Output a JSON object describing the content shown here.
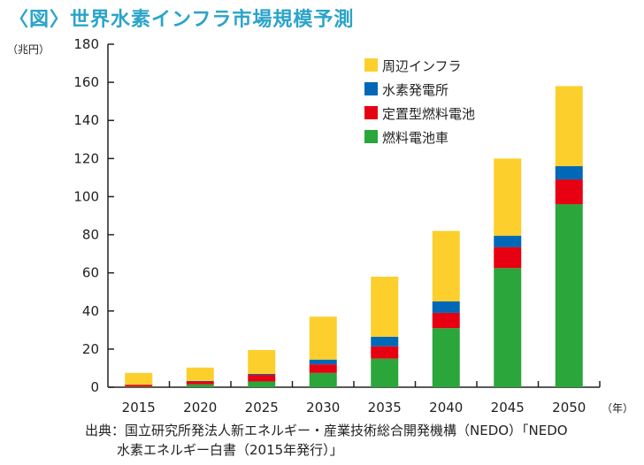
{
  "title": "〈図〉世界水素インフラ市場規模予測",
  "source": {
    "line1": "出典：国立研究所発法人新エネルギー・産業技術総合開発機構（NEDO）「NEDO",
    "line2": "水素エネルギー白書（2015年発行）」"
  },
  "chart_data": {
    "type": "bar",
    "stacked": true,
    "title": "〈図〉世界水素インフラ市場規模予測",
    "ylabel_unit": "（兆円）",
    "xlabel_unit": "（年）",
    "categories": [
      "2015",
      "2020",
      "2025",
      "2030",
      "2035",
      "2040",
      "2045",
      "2050"
    ],
    "ylim": [
      0,
      180
    ],
    "yticks": [
      0,
      20,
      40,
      60,
      80,
      100,
      120,
      140,
      160,
      180
    ],
    "grid": false,
    "legend_position": "top-right",
    "series": [
      {
        "name": "燃料電池車",
        "color": "#2aa63a",
        "values": [
          0.3,
          1.5,
          3,
          7.5,
          15,
          31,
          62.5,
          96
        ]
      },
      {
        "name": "定置型燃料電池",
        "color": "#e60012",
        "values": [
          1,
          1.5,
          3.5,
          4.5,
          6.5,
          8,
          11,
          13
        ]
      },
      {
        "name": "水素発電所",
        "color": "#0068b7",
        "values": [
          0,
          0.3,
          0.5,
          2.5,
          5,
          6,
          6,
          7
        ]
      },
      {
        "name": "周辺インフラ",
        "color": "#fccf2c",
        "values": [
          6.2,
          7,
          12.5,
          22.5,
          31.5,
          37,
          40.5,
          42
        ]
      }
    ],
    "legend_order": [
      "周辺インフラ",
      "水素発電所",
      "定置型燃料電池",
      "燃料電池車"
    ]
  }
}
